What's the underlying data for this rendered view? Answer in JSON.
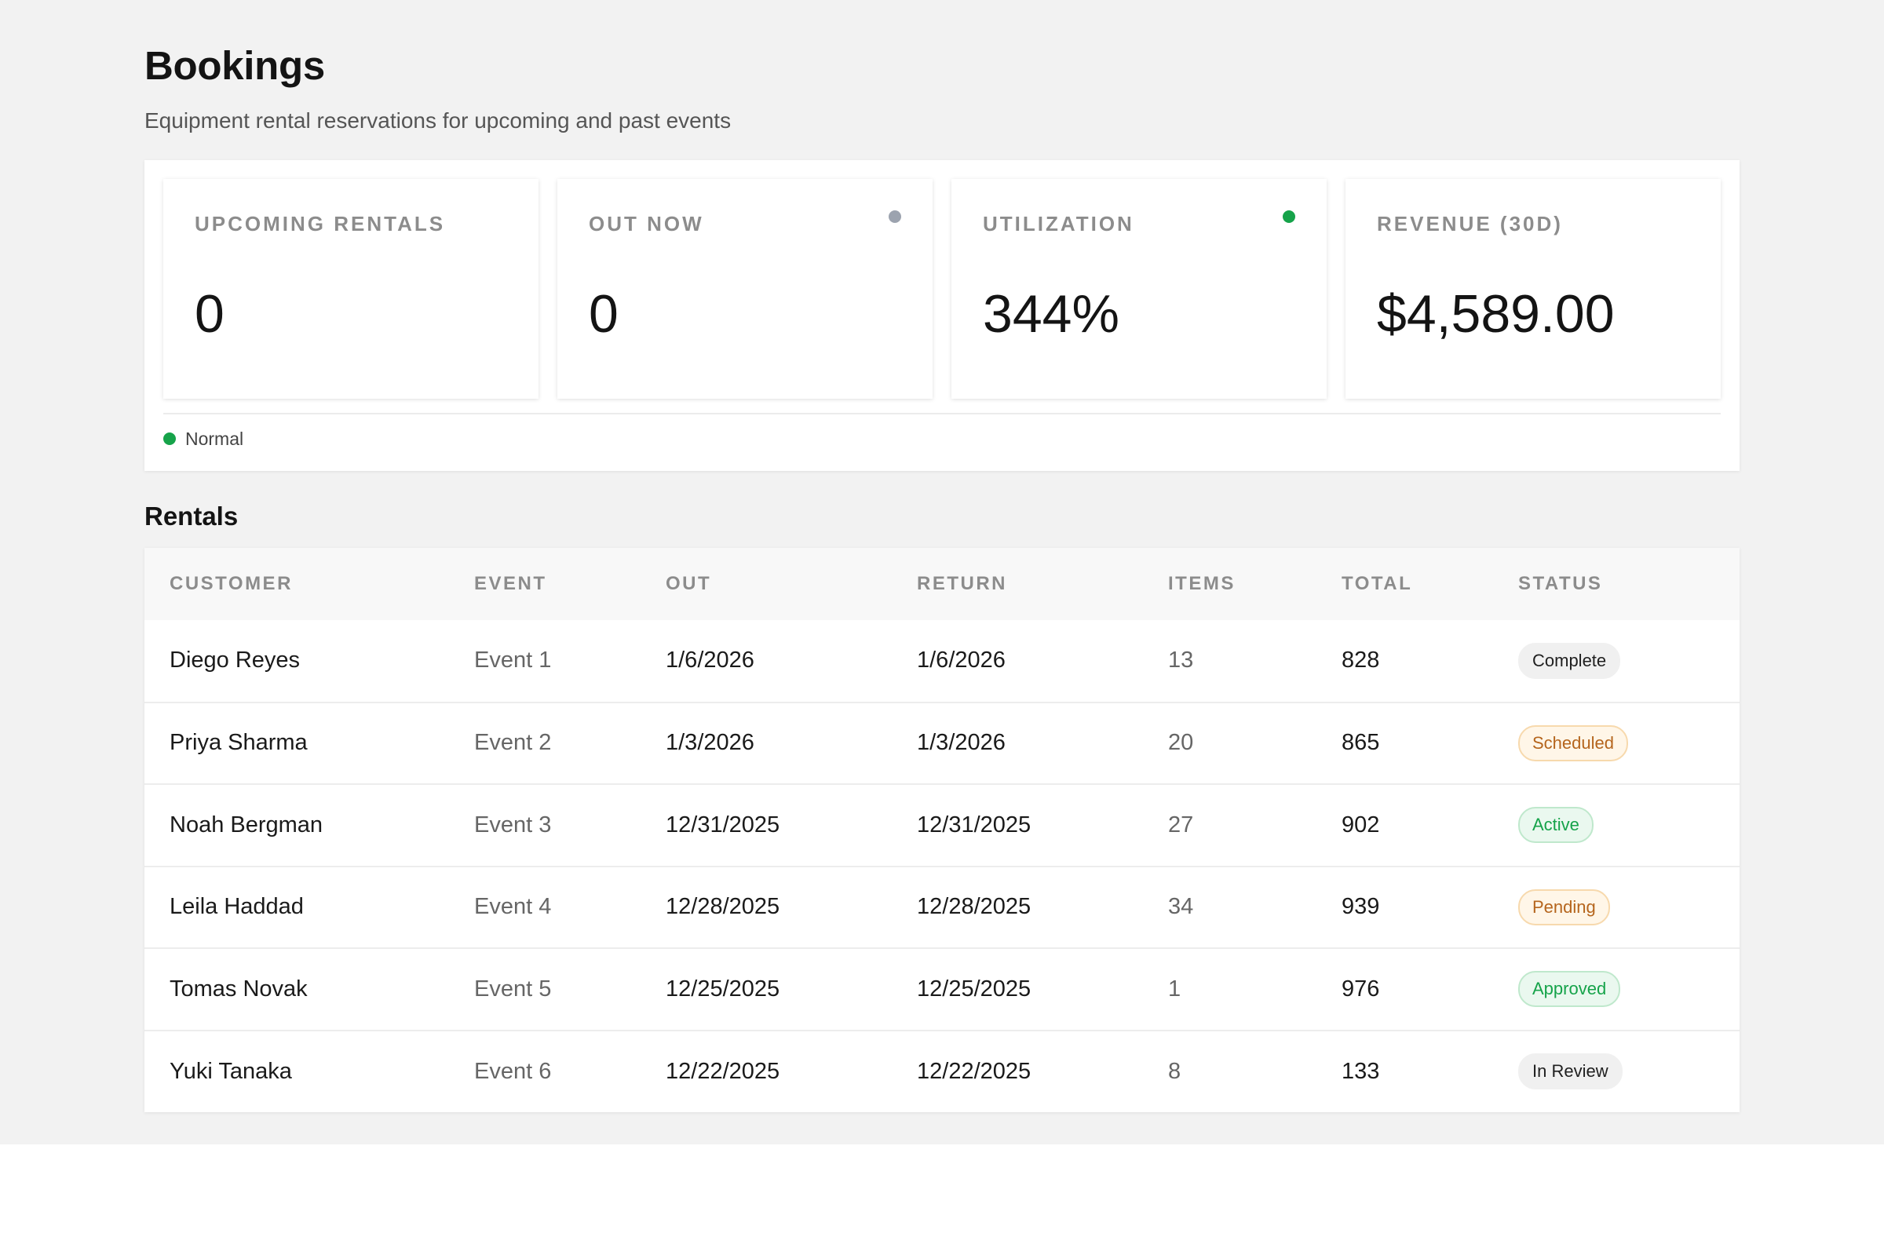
{
  "page": {
    "title": "Bookings",
    "subtitle": "Equipment rental reservations for upcoming and past events"
  },
  "stats": [
    {
      "label": "UPCOMING RENTALS",
      "value": "0",
      "indicator": null
    },
    {
      "label": "OUT NOW",
      "value": "0",
      "indicator": "#9ca3af"
    },
    {
      "label": "UTILIZATION",
      "value": "344%",
      "indicator": "#16a34a"
    },
    {
      "label": "REVENUE (30D)",
      "value": "$4,589.00",
      "indicator": null
    }
  ],
  "legend": {
    "label": "Normal",
    "color": "#16a34a"
  },
  "rentals": {
    "title": "Rentals",
    "columns": [
      "CUSTOMER",
      "EVENT",
      "OUT",
      "RETURN",
      "ITEMS",
      "TOTAL",
      "STATUS"
    ],
    "rows": [
      {
        "customer": "Diego Reyes",
        "event": "Event 1",
        "out": "1/6/2026",
        "return": "1/6/2026",
        "items": "13",
        "total": "828",
        "status": "Complete",
        "status_style": "neutral"
      },
      {
        "customer": "Priya Sharma",
        "event": "Event 2",
        "out": "1/3/2026",
        "return": "1/3/2026",
        "items": "20",
        "total": "865",
        "status": "Scheduled",
        "status_style": "amber"
      },
      {
        "customer": "Noah Bergman",
        "event": "Event 3",
        "out": "12/31/2025",
        "return": "12/31/2025",
        "items": "27",
        "total": "902",
        "status": "Active",
        "status_style": "green"
      },
      {
        "customer": "Leila Haddad",
        "event": "Event 4",
        "out": "12/28/2025",
        "return": "12/28/2025",
        "items": "34",
        "total": "939",
        "status": "Pending",
        "status_style": "amber"
      },
      {
        "customer": "Tomas Novak",
        "event": "Event 5",
        "out": "12/25/2025",
        "return": "12/25/2025",
        "items": "1",
        "total": "976",
        "status": "Approved",
        "status_style": "green"
      },
      {
        "customer": "Yuki Tanaka",
        "event": "Event 6",
        "out": "12/22/2025",
        "return": "12/22/2025",
        "items": "8",
        "total": "133",
        "status": "In Review",
        "status_style": "neutral"
      }
    ]
  }
}
